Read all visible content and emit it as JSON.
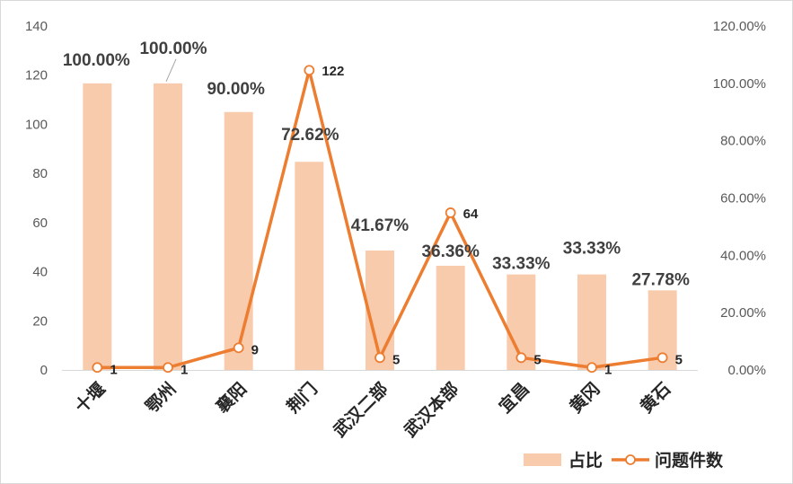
{
  "chart_data": {
    "type": "bar",
    "categories": [
      "十堰",
      "鄂州",
      "襄阳",
      "荆门",
      "武汉二部",
      "武汉本部",
      "宜昌",
      "黄冈",
      "黄石"
    ],
    "series": [
      {
        "name": "占比",
        "type": "bar",
        "axis": "right",
        "values": [
          100.0,
          100.0,
          90.0,
          72.62,
          41.67,
          36.36,
          33.33,
          33.33,
          27.78
        ],
        "labels": [
          "100.00%",
          "100.00%",
          "90.00%",
          "72.62%",
          "41.67%",
          "36.36%",
          "33.33%",
          "33.33%",
          "27.78%"
        ],
        "color": "#f8cbad"
      },
      {
        "name": "问题件数",
        "type": "line",
        "axis": "left",
        "values": [
          1,
          1,
          9,
          122,
          5,
          64,
          5,
          1,
          5
        ],
        "labels": [
          "1",
          "1",
          "9",
          "122",
          "5",
          "64",
          "5",
          "1",
          "5"
        ],
        "color": "#ed7d31"
      }
    ],
    "y_left": {
      "min": 0,
      "max": 140,
      "ticks": [
        "0",
        "20",
        "40",
        "60",
        "80",
        "100",
        "120",
        "140"
      ]
    },
    "y_right": {
      "min": 0,
      "max": 120,
      "ticks": [
        "0.00%",
        "20.00%",
        "40.00%",
        "60.00%",
        "80.00%",
        "100.00%",
        "120.00%"
      ]
    },
    "grid": false,
    "legend_position": "bottom-right"
  }
}
